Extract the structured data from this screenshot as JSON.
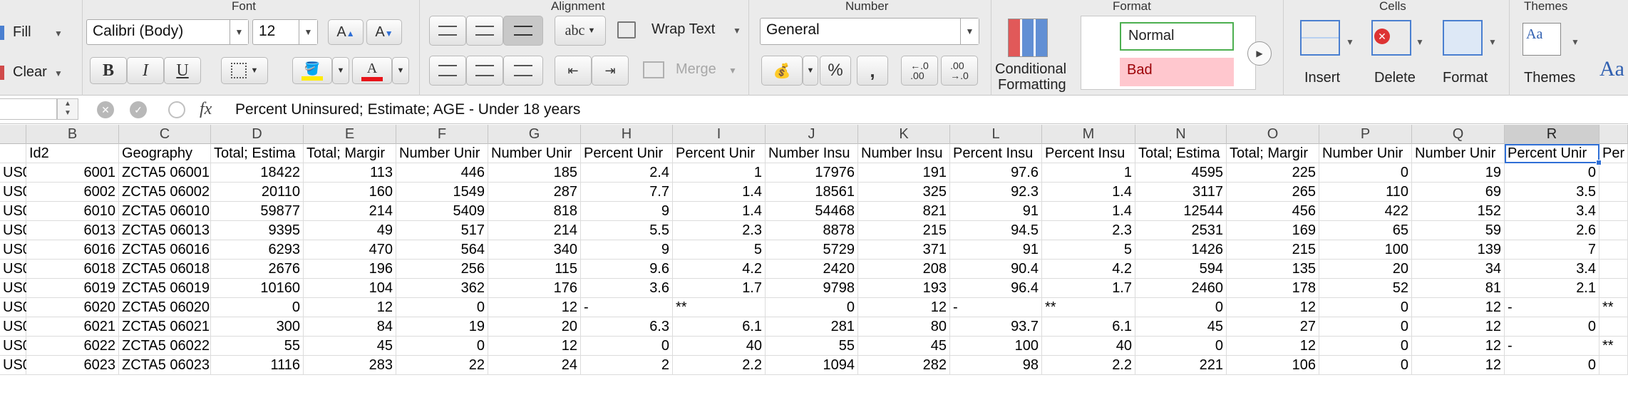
{
  "ribbon": {
    "groups": {
      "font": "Font",
      "alignment": "Alignment",
      "number": "Number",
      "format": "Format",
      "cells": "Cells",
      "themes": "Themes"
    },
    "fill_label": "Fill",
    "clear_label": "Clear",
    "font_name": "Calibri (Body)",
    "font_size": "12",
    "bold": "B",
    "italic": "I",
    "underline": "U",
    "wrap_text": "Wrap Text",
    "abc": "abc",
    "merge": "Merge",
    "number_format": "General",
    "percent": "%",
    "comma": ",",
    "inc_dec": ".0\n.00",
    "conditional_formatting_1": "Conditional",
    "conditional_formatting_2": "Formatting",
    "style_normal": "Normal",
    "style_bad": "Bad",
    "insert": "Insert",
    "delete": "Delete",
    "format_btn": "Format",
    "themes_btn": "Themes",
    "aa": "Aa"
  },
  "formula_bar": {
    "name_box": "",
    "fx": "fx",
    "content": "Percent Uninsured; Estimate; AGE - Under 18 years"
  },
  "colors": {
    "selection": "#2f6fd6",
    "normal_style_border": "#4caf50",
    "bad_style_bg": "#ffc7ce",
    "bad_style_text": "#9c0006"
  },
  "columns": [
    "",
    "B",
    "C",
    "D",
    "E",
    "F",
    "G",
    "H",
    "I",
    "J",
    "K",
    "L",
    "M",
    "N",
    "O",
    "P",
    "Q",
    "R",
    ""
  ],
  "header_row": [
    "",
    "Id2",
    "Geography",
    "Total; Estima",
    "Total; Margir",
    "Number Unir",
    "Number Unir",
    "Percent Unir",
    "Percent Unir",
    "Number Insu",
    "Number Insu",
    "Percent Insu",
    "Percent Insu",
    "Total; Estima",
    "Total; Margir",
    "Number Unir",
    "Number Unir",
    "Percent Unir",
    "Per"
  ],
  "rows": [
    [
      "US0",
      "6001",
      "ZCTA5 06001",
      "18422",
      "113",
      "446",
      "185",
      "2.4",
      "1",
      "17976",
      "191",
      "97.6",
      "1",
      "4595",
      "225",
      "0",
      "19",
      "0",
      ""
    ],
    [
      "US0",
      "6002",
      "ZCTA5 06002",
      "20110",
      "160",
      "1549",
      "287",
      "7.7",
      "1.4",
      "18561",
      "325",
      "92.3",
      "1.4",
      "3117",
      "265",
      "110",
      "69",
      "3.5",
      ""
    ],
    [
      "US0",
      "6010",
      "ZCTA5 06010",
      "59877",
      "214",
      "5409",
      "818",
      "9",
      "1.4",
      "54468",
      "821",
      "91",
      "1.4",
      "12544",
      "456",
      "422",
      "152",
      "3.4",
      ""
    ],
    [
      "US0",
      "6013",
      "ZCTA5 06013",
      "9395",
      "49",
      "517",
      "214",
      "5.5",
      "2.3",
      "8878",
      "215",
      "94.5",
      "2.3",
      "2531",
      "169",
      "65",
      "59",
      "2.6",
      ""
    ],
    [
      "US0",
      "6016",
      "ZCTA5 06016",
      "6293",
      "470",
      "564",
      "340",
      "9",
      "5",
      "5729",
      "371",
      "91",
      "5",
      "1426",
      "215",
      "100",
      "139",
      "7",
      ""
    ],
    [
      "US0",
      "6018",
      "ZCTA5 06018",
      "2676",
      "196",
      "256",
      "115",
      "9.6",
      "4.2",
      "2420",
      "208",
      "90.4",
      "4.2",
      "594",
      "135",
      "20",
      "34",
      "3.4",
      ""
    ],
    [
      "US0",
      "6019",
      "ZCTA5 06019",
      "10160",
      "104",
      "362",
      "176",
      "3.6",
      "1.7",
      "9798",
      "193",
      "96.4",
      "1.7",
      "2460",
      "178",
      "52",
      "81",
      "2.1",
      ""
    ],
    [
      "US0",
      "6020",
      "ZCTA5 06020",
      "0",
      "12",
      "0",
      "12",
      "-",
      "**",
      "0",
      "12",
      "-",
      "**",
      "0",
      "12",
      "0",
      "12",
      "-",
      "**"
    ],
    [
      "US0",
      "6021",
      "ZCTA5 06021",
      "300",
      "84",
      "19",
      "20",
      "6.3",
      "6.1",
      "281",
      "80",
      "93.7",
      "6.1",
      "45",
      "27",
      "0",
      "12",
      "0",
      ""
    ],
    [
      "US0",
      "6022",
      "ZCTA5 06022",
      "55",
      "45",
      "0",
      "12",
      "0",
      "40",
      "55",
      "45",
      "100",
      "40",
      "0",
      "12",
      "0",
      "12",
      "-",
      "**"
    ],
    [
      "US0",
      "6023",
      "ZCTA5 06023",
      "1116",
      "283",
      "22",
      "24",
      "2",
      "2.2",
      "1094",
      "282",
      "98",
      "2.2",
      "221",
      "106",
      "0",
      "12",
      "0",
      ""
    ]
  ]
}
